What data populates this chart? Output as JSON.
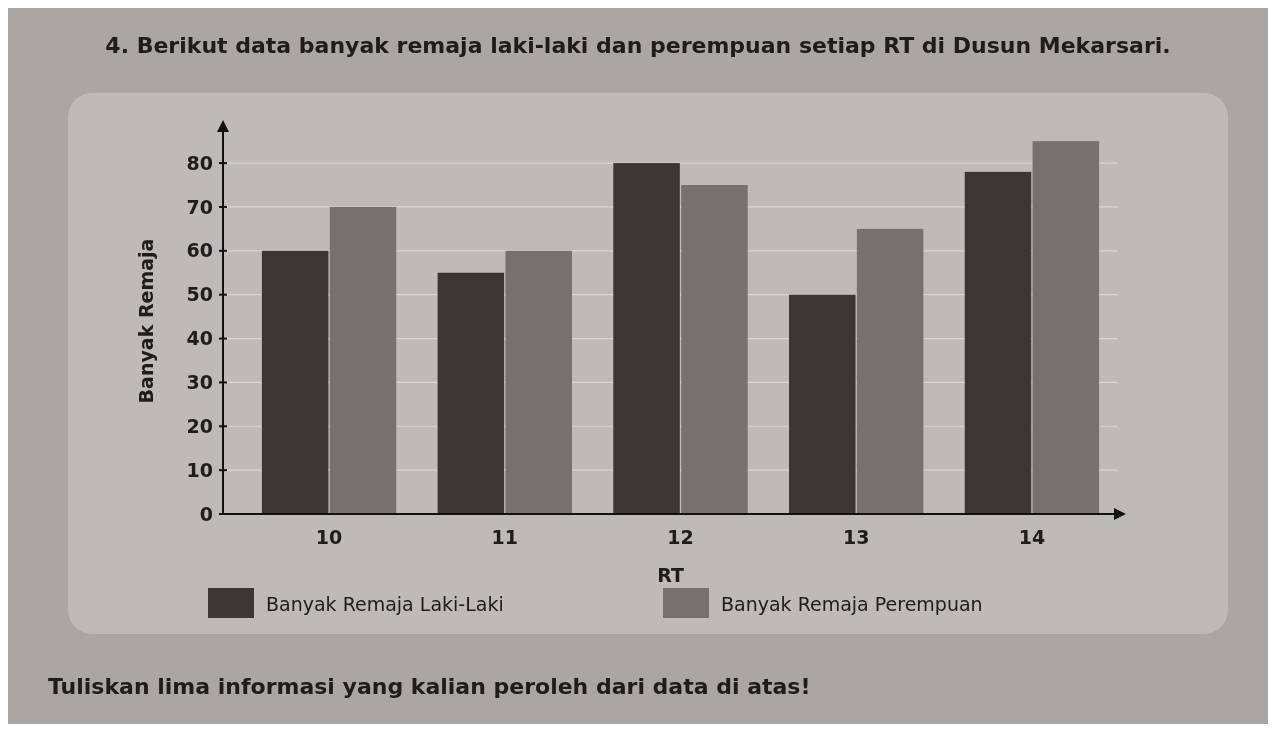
{
  "chart_data": {
    "type": "bar",
    "title": "4. Berikut data banyak remaja laki-laki dan perempuan setiap RT di Dusun Mekarsari.",
    "xlabel": "RT",
    "ylabel": "Banyak Remaja",
    "categories": [
      "10",
      "11",
      "12",
      "13",
      "14"
    ],
    "series": [
      {
        "name": "Banyak Remaja Laki-Laki",
        "color": "#3b3533",
        "values": [
          60,
          55,
          80,
          50,
          78
        ]
      },
      {
        "name": "Banyak Remaja Perempuan",
        "color": "#76716e",
        "values": [
          70,
          60,
          75,
          65,
          85
        ]
      }
    ],
    "ylim": [
      0,
      88
    ],
    "yticks": [
      0,
      10,
      20,
      30,
      40,
      50,
      60,
      70,
      80
    ],
    "grid": "y",
    "legend": "bottom",
    "annotations": [
      "Tuliskan lima informasi yang kalian peroleh dari data di atas!"
    ]
  }
}
